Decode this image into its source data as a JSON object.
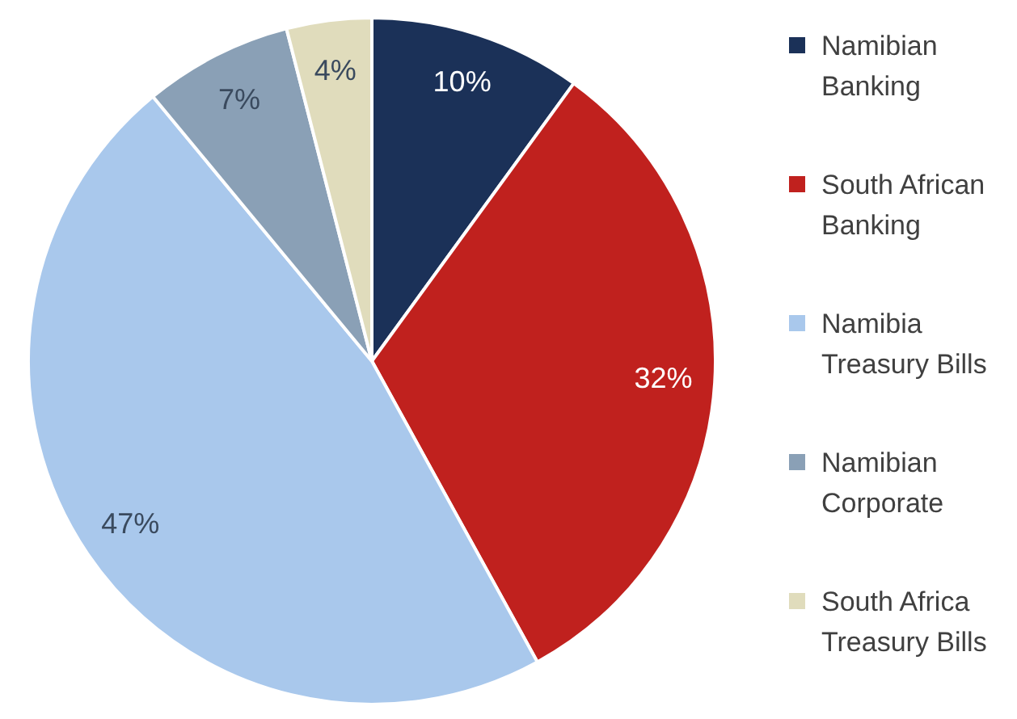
{
  "chart_data": {
    "type": "pie",
    "categories": [
      "Namibian Banking",
      "South African Banking",
      "Namibia Treasury Bills",
      "Namibian Corporate",
      "South Africa Treasury Bills"
    ],
    "values": [
      10,
      32,
      47,
      7,
      4
    ],
    "colors": [
      "#1b3158",
      "#c0211e",
      "#a9c8ec",
      "#8aa0b6",
      "#e0dcbc"
    ],
    "value_labels": [
      "10%",
      "32%",
      "47%",
      "7%",
      "4%"
    ],
    "legend": "right"
  }
}
